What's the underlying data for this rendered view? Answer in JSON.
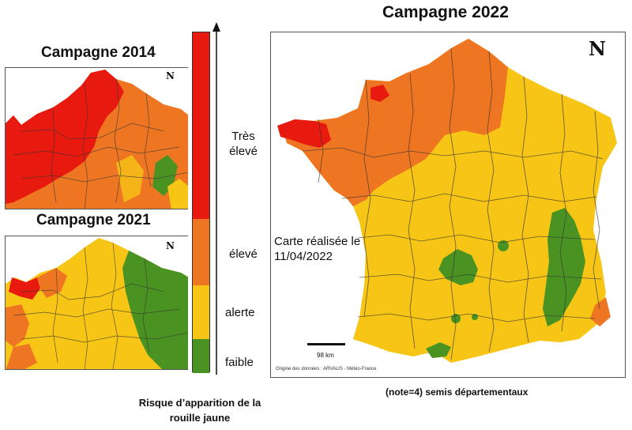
{
  "titles": {
    "campagne_2014": "Campagne 2014",
    "campagne_2021": "Campagne 2021",
    "campagne_2022": "Campagne 2022"
  },
  "legend": {
    "levels": [
      {
        "label": "Très\nélevé",
        "color": "#e8190f"
      },
      {
        "label": "élevé",
        "color": "#ee7623"
      },
      {
        "label": "alerte",
        "color": "#f6c515"
      },
      {
        "label": "faible",
        "color": "#4a9322"
      }
    ],
    "caption": "Risque d’apparition de la rouille jaune"
  },
  "map_2022": {
    "date_note": "Carte réalisée le 11/04/2022",
    "scale": "98 km",
    "source": "Origine des données : ARVALIS - Météo-France"
  },
  "note": "(note=4) semis départementaux",
  "north_symbol": "N"
}
